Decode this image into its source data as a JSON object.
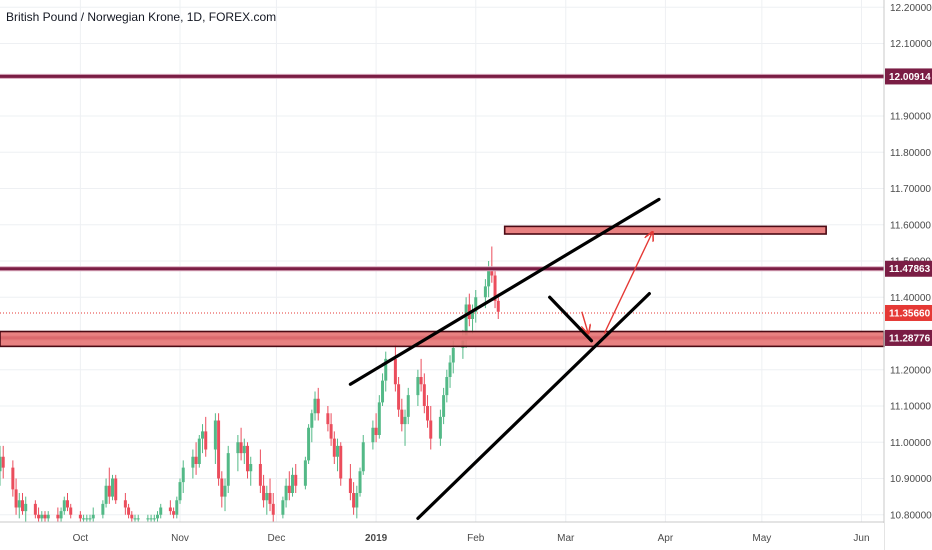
{
  "chart_data": {
    "type": "candlestick",
    "title": "British Pound / Norwegian Krone, 1D, FOREX.com",
    "ylim": [
      10.78,
      12.22
    ],
    "y_ticks": [
      "12.20000",
      "12.10000",
      "11.90000",
      "11.80000",
      "11.70000",
      "11.60000",
      "11.50000",
      "11.40000",
      "11.20000",
      "11.10000",
      "11.00000",
      "10.90000",
      "10.80000"
    ],
    "x_ticks": [
      "Oct",
      "Nov",
      "Dec",
      "2019",
      "Feb",
      "Mar",
      "Apr",
      "May",
      "Jun"
    ],
    "x_tick_dates": [
      "2018-10-01",
      "2018-11-01",
      "2018-12-01",
      "2019-01-01",
      "2019-02-01",
      "2019-03-01",
      "2019-04-01",
      "2019-05-01",
      "2019-06-01"
    ],
    "x_range": [
      "2018-09-06",
      "2019-06-08"
    ],
    "grid": true,
    "colors": {
      "up": "#53b987",
      "down": "#eb4d5c",
      "resistance": "#7a1d44",
      "zone": "#e53935"
    },
    "price_levels": [
      {
        "value": 12.00914,
        "label": "12.00914",
        "color": "#7a1d44"
      },
      {
        "value": 11.47863,
        "label": "11.47863",
        "color": "#7a1d44"
      },
      {
        "value": 11.28776,
        "label": "11.28776",
        "color": "#7a1d44"
      }
    ],
    "current_price": {
      "value": 11.3566,
      "label": "11.35660",
      "color": "#e53935"
    },
    "start_date": "2018-09-06",
    "candles": [
      [
        10.92,
        10.99,
        10.88,
        10.96
      ],
      [
        10.96,
        10.99,
        10.9,
        10.93
      ],
      [
        10.93,
        10.95,
        10.85,
        10.87
      ],
      [
        10.87,
        10.9,
        10.8,
        10.82
      ],
      [
        10.82,
        10.86,
        10.79,
        10.84
      ],
      [
        10.84,
        10.86,
        10.8,
        10.81
      ],
      [
        10.81,
        10.85,
        10.78,
        10.83
      ],
      [
        10.83,
        10.84,
        10.79,
        10.8
      ],
      [
        10.8,
        10.82,
        10.78,
        10.79
      ],
      [
        10.79,
        10.81,
        10.78,
        10.8
      ],
      [
        10.8,
        10.81,
        10.78,
        10.79
      ],
      [
        10.79,
        10.81,
        10.78,
        10.8
      ],
      [
        10.8,
        10.82,
        10.78,
        10.79
      ],
      [
        10.79,
        10.82,
        10.78,
        10.81
      ],
      [
        10.81,
        10.85,
        10.8,
        10.84
      ],
      [
        10.84,
        10.86,
        10.81,
        10.82
      ],
      [
        10.82,
        10.83,
        10.79,
        10.8
      ],
      [
        10.8,
        10.81,
        10.78,
        10.79
      ],
      [
        10.79,
        10.8,
        10.78,
        10.79
      ],
      [
        10.79,
        10.8,
        10.78,
        10.79
      ],
      [
        10.79,
        10.8,
        10.78,
        10.79
      ],
      [
        10.79,
        10.82,
        10.78,
        10.8
      ],
      [
        10.8,
        10.84,
        10.79,
        10.83
      ],
      [
        10.83,
        10.9,
        10.82,
        10.88
      ],
      [
        10.88,
        10.93,
        10.83,
        10.85
      ],
      [
        10.85,
        10.91,
        10.84,
        10.9
      ],
      [
        10.9,
        10.91,
        10.83,
        10.84
      ],
      [
        10.84,
        10.86,
        10.8,
        10.82
      ],
      [
        10.82,
        10.83,
        10.79,
        10.8
      ],
      [
        10.8,
        10.81,
        10.78,
        10.79
      ],
      [
        10.79,
        10.8,
        10.78,
        10.79
      ],
      [
        10.79,
        10.8,
        10.78,
        10.79
      ],
      [
        10.79,
        10.8,
        10.78,
        10.79
      ],
      [
        10.79,
        10.8,
        10.78,
        10.79
      ],
      [
        10.79,
        10.8,
        10.78,
        10.79
      ],
      [
        10.79,
        10.81,
        10.78,
        10.8
      ],
      [
        10.8,
        10.83,
        10.79,
        10.82
      ],
      [
        10.82,
        10.84,
        10.8,
        10.81
      ],
      [
        10.81,
        10.82,
        10.79,
        10.8
      ],
      [
        10.8,
        10.85,
        10.79,
        10.84
      ],
      [
        10.84,
        10.9,
        10.83,
        10.89
      ],
      [
        10.89,
        10.95,
        10.86,
        10.93
      ],
      [
        10.93,
        10.98,
        10.9,
        10.96
      ],
      [
        10.96,
        11.0,
        10.91,
        10.94
      ],
      [
        10.94,
        11.02,
        10.93,
        11.01
      ],
      [
        11.01,
        11.05,
        10.97,
        11.03
      ],
      [
        11.03,
        11.07,
        10.96,
        10.98
      ],
      [
        10.98,
        11.08,
        10.94,
        11.06
      ],
      [
        11.06,
        11.08,
        10.88,
        10.9
      ],
      [
        10.9,
        10.92,
        10.82,
        10.85
      ],
      [
        10.85,
        10.9,
        10.81,
        10.88
      ],
      [
        10.88,
        10.99,
        10.86,
        10.97
      ],
      [
        10.97,
        11.02,
        10.92,
        11.0
      ],
      [
        11.0,
        11.04,
        10.95,
        10.97
      ],
      [
        10.97,
        11.01,
        10.94,
        10.99
      ],
      [
        10.99,
        11.0,
        10.9,
        10.92
      ],
      [
        10.92,
        10.96,
        10.88,
        10.94
      ],
      [
        10.94,
        10.98,
        10.86,
        10.88
      ],
      [
        10.88,
        10.91,
        10.82,
        10.84
      ],
      [
        10.84,
        10.88,
        10.8,
        10.86
      ],
      [
        10.86,
        10.9,
        10.81,
        10.83
      ],
      [
        10.83,
        10.86,
        10.78,
        10.8
      ],
      [
        10.8,
        10.85,
        10.79,
        10.84
      ],
      [
        10.84,
        10.9,
        10.82,
        10.88
      ],
      [
        10.88,
        10.92,
        10.84,
        10.86
      ],
      [
        10.86,
        10.93,
        10.85,
        10.91
      ],
      [
        10.91,
        10.94,
        10.86,
        10.88
      ],
      [
        10.88,
        10.96,
        10.87,
        10.95
      ],
      [
        10.95,
        11.05,
        10.94,
        11.04
      ],
      [
        11.04,
        11.09,
        11.0,
        11.08
      ],
      [
        11.08,
        11.14,
        11.06,
        11.12
      ],
      [
        11.12,
        11.15,
        11.06,
        11.08
      ],
      [
        11.08,
        11.1,
        11.03,
        11.05
      ],
      [
        11.05,
        11.08,
        10.99,
        11.01
      ],
      [
        11.01,
        11.03,
        10.94,
        10.96
      ],
      [
        10.96,
        11.01,
        10.92,
        10.99
      ],
      [
        10.99,
        11.0,
        10.88,
        10.9
      ],
      [
        10.9,
        10.94,
        10.84,
        10.86
      ],
      [
        10.86,
        10.89,
        10.8,
        10.82
      ],
      [
        10.82,
        10.88,
        10.79,
        10.86
      ],
      [
        10.86,
        10.93,
        10.85,
        10.92
      ],
      [
        10.92,
        11.02,
        10.91,
        11.0
      ],
      [
        11.0,
        11.06,
        10.98,
        11.04
      ],
      [
        11.04,
        11.08,
        11.0,
        11.02
      ],
      [
        11.02,
        11.13,
        11.01,
        11.11
      ],
      [
        11.11,
        11.19,
        11.1,
        11.17
      ],
      [
        11.17,
        11.25,
        11.14,
        11.23
      ],
      [
        11.23,
        11.27,
        11.14,
        11.16
      ],
      [
        11.16,
        11.18,
        11.07,
        11.09
      ],
      [
        11.09,
        11.12,
        11.03,
        11.05
      ],
      [
        11.05,
        11.09,
        10.99,
        11.07
      ],
      [
        11.07,
        11.15,
        11.05,
        11.13
      ],
      [
        11.13,
        11.2,
        11.1,
        11.18
      ],
      [
        11.18,
        11.23,
        11.14,
        11.16
      ],
      [
        11.16,
        11.19,
        11.08,
        11.1
      ],
      [
        11.1,
        11.13,
        11.04,
        11.06
      ],
      [
        11.06,
        11.1,
        10.98,
        11.01
      ],
      [
        11.01,
        11.09,
        10.99,
        11.07
      ],
      [
        11.07,
        11.15,
        11.05,
        11.13
      ],
      [
        11.13,
        11.2,
        11.11,
        11.18
      ],
      [
        11.18,
        11.24,
        11.15,
        11.22
      ],
      [
        11.22,
        11.28,
        11.19,
        11.26
      ],
      [
        11.26,
        11.31,
        11.23,
        11.28
      ],
      [
        11.28,
        11.4,
        11.26,
        11.38
      ],
      [
        11.38,
        11.41,
        11.32,
        11.34
      ],
      [
        11.34,
        11.38,
        11.3,
        11.36
      ],
      [
        11.36,
        11.42,
        11.33,
        11.4
      ],
      [
        11.4,
        11.45,
        11.37,
        11.43
      ],
      [
        11.43,
        11.5,
        11.4,
        11.48
      ],
      [
        11.48,
        11.54,
        11.44,
        11.46
      ],
      [
        11.46,
        11.48,
        11.37,
        11.39
      ],
      [
        11.39,
        11.41,
        11.34,
        11.36
      ]
    ],
    "trendlines": [
      {
        "from": [
          "2018-12-24",
          11.16
        ],
        "to": [
          "2019-03-30",
          11.67
        ],
        "color": "#000000"
      },
      {
        "from": [
          "2019-01-14",
          10.79
        ],
        "to": [
          "2019-03-27",
          11.41
        ],
        "color": "#000000"
      },
      {
        "from": [
          "2019-02-24",
          11.4
        ],
        "to": [
          "2019-03-09",
          11.28
        ],
        "color": "#000000"
      }
    ],
    "zones": [
      {
        "from": "2019-02-10",
        "to": "2019-05-21",
        "top": 11.59,
        "bottom": 11.58,
        "color": "#e53935"
      },
      {
        "from": "2018-09-06",
        "to": "2019-06-08",
        "top": 11.3,
        "bottom": 11.27,
        "color": "#e53935"
      }
    ],
    "arrows": [
      {
        "from": [
          "2019-03-06",
          11.36
        ],
        "to": [
          "2019-03-08",
          11.3
        ],
        "color": "#e53935"
      },
      {
        "from": [
          "2019-03-13",
          11.3
        ],
        "to": [
          "2019-03-28",
          11.58
        ],
        "color": "#e53935"
      }
    ]
  }
}
